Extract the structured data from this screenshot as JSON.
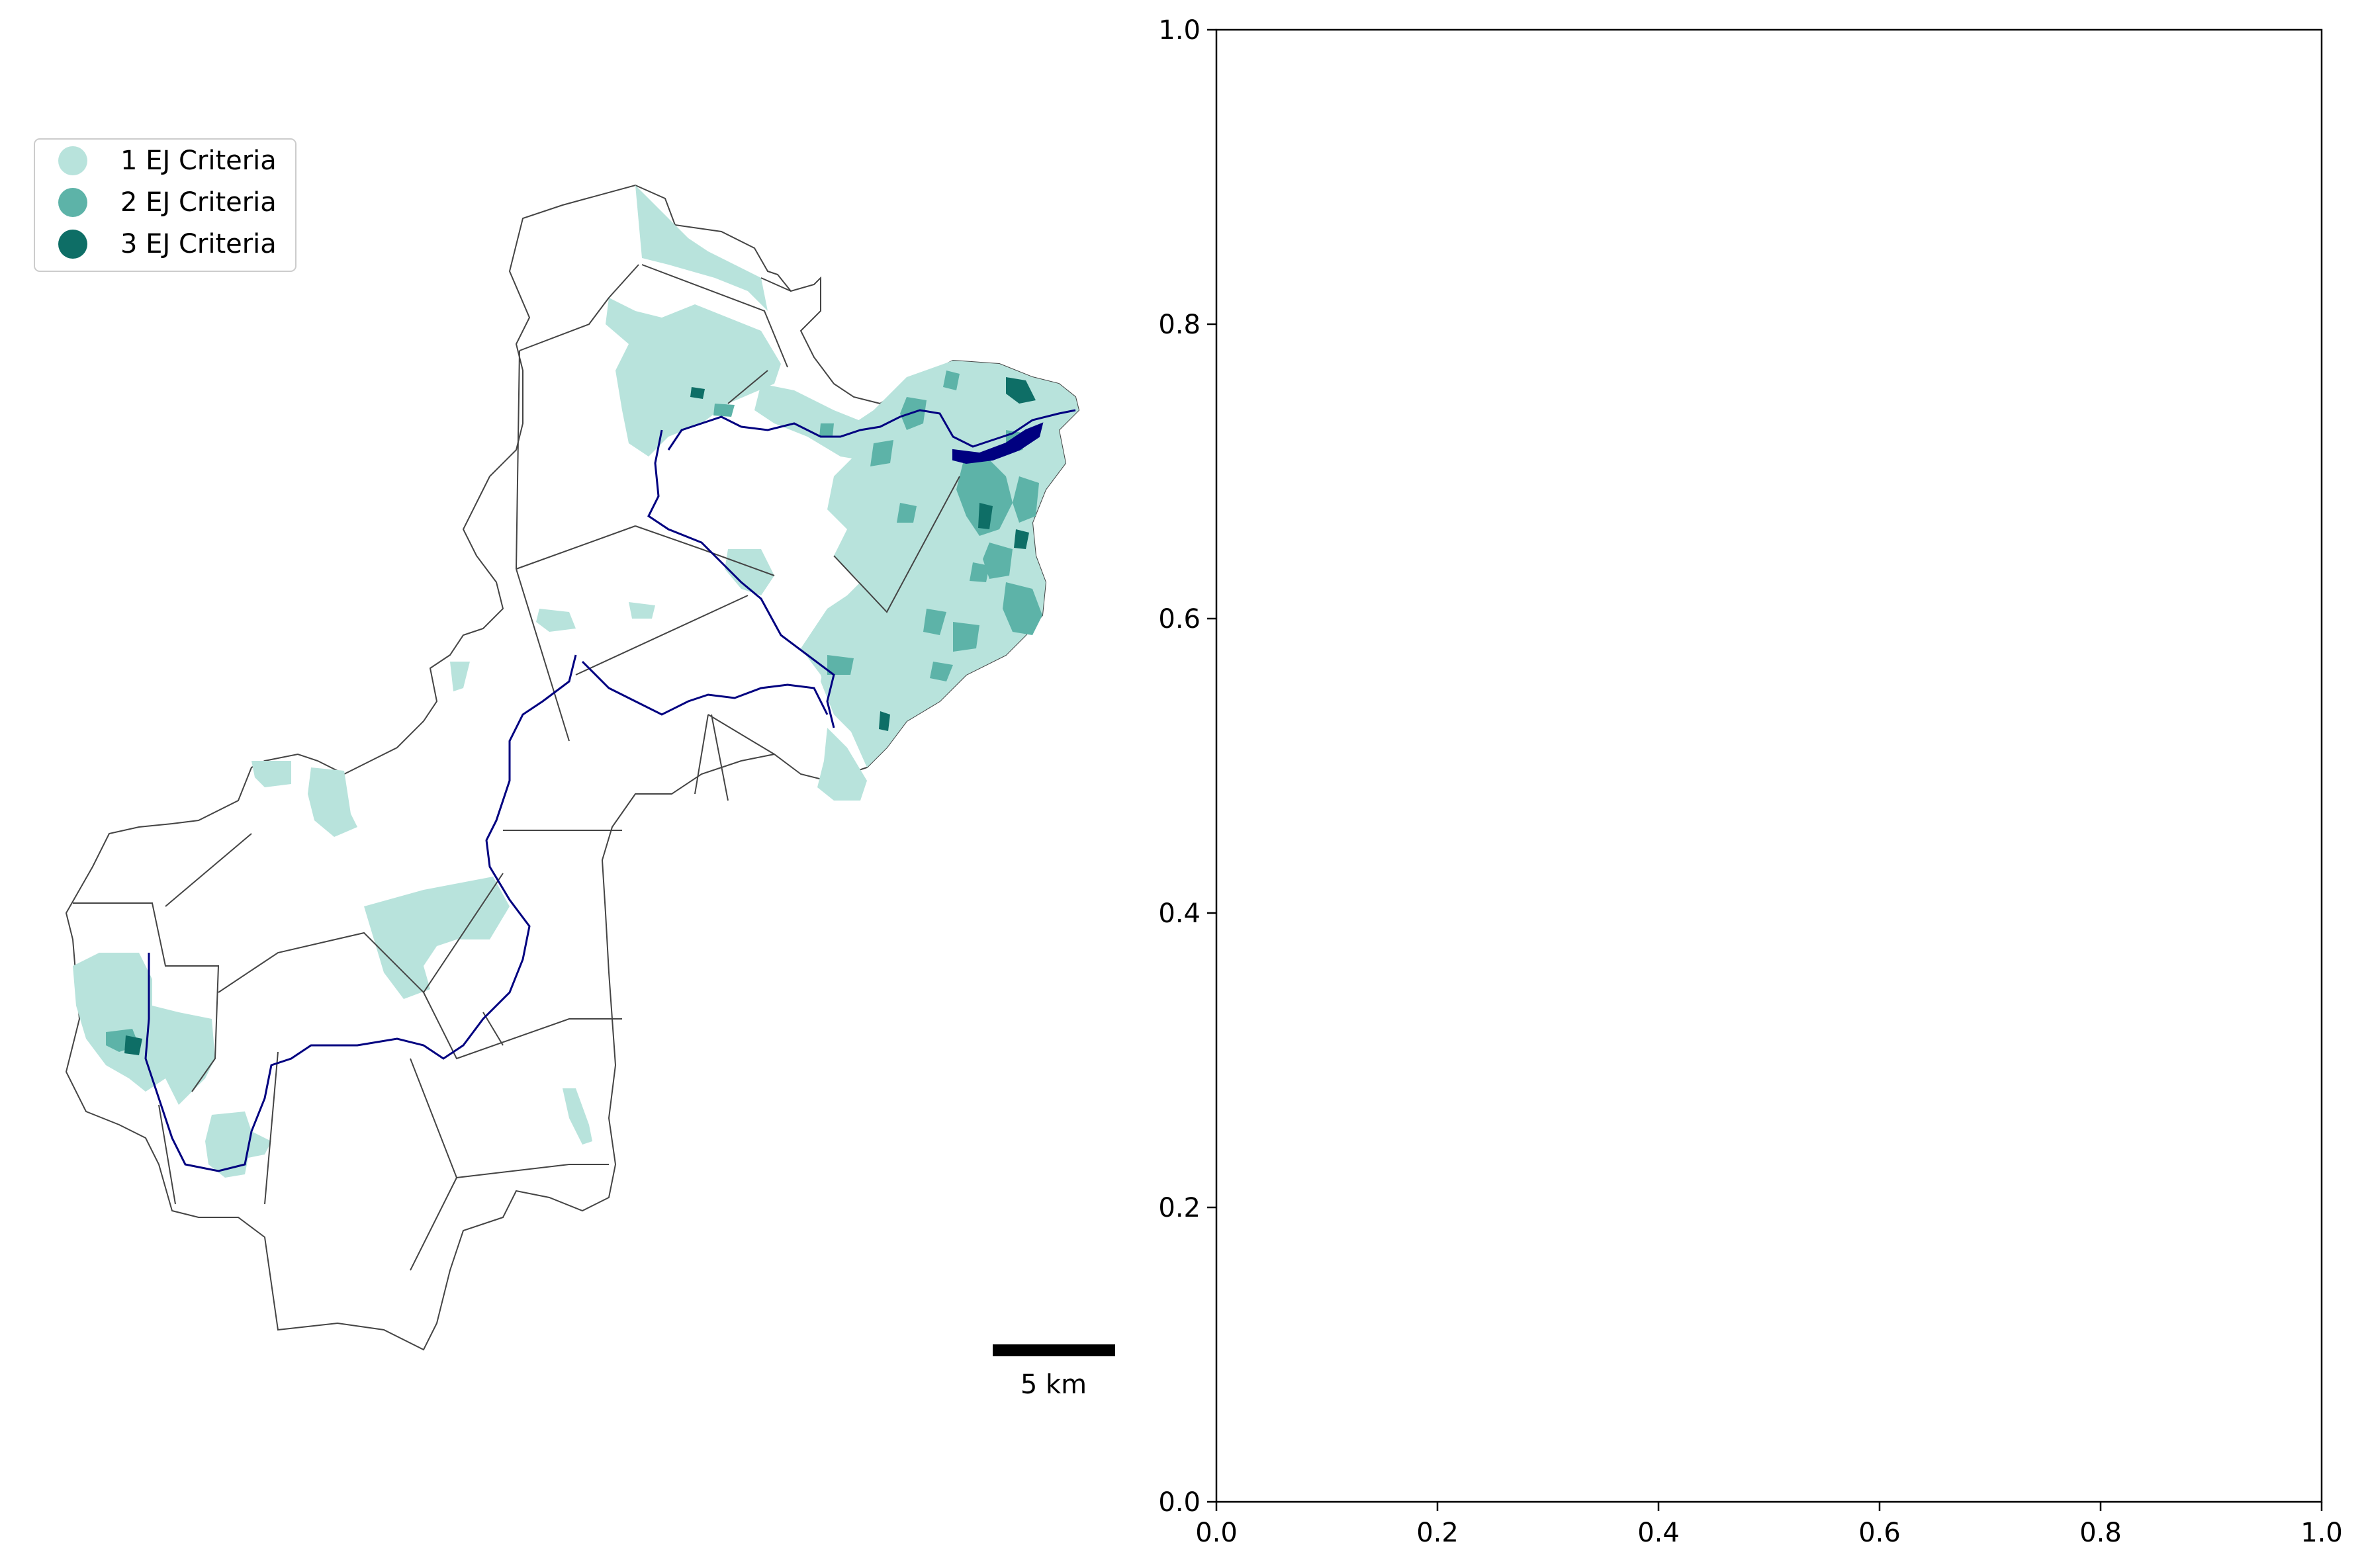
{
  "legend": {
    "items": [
      {
        "label": "1 EJ Criteria",
        "color": "#b8e3dc"
      },
      {
        "label": "2 EJ Criteria",
        "color": "#5db3a8"
      },
      {
        "label": "3 EJ Criteria",
        "color": "#0e6e66"
      }
    ]
  },
  "scale_bar": {
    "label": "5 km"
  },
  "colors": {
    "boundary": "#444444",
    "river": "#000080",
    "level1": "#b8e3dc",
    "level2": "#5db3a8",
    "level3": "#0e6e66"
  },
  "chart_data": {
    "type": "scatter",
    "series": [],
    "xlim": [
      0.0,
      1.0
    ],
    "ylim": [
      0.0,
      1.0
    ],
    "x_ticks": [
      "0.0",
      "0.2",
      "0.4",
      "0.6",
      "0.8",
      "1.0"
    ],
    "y_ticks": [
      "0.0",
      "0.2",
      "0.4",
      "0.6",
      "0.8",
      "1.0"
    ],
    "grid": false
  }
}
